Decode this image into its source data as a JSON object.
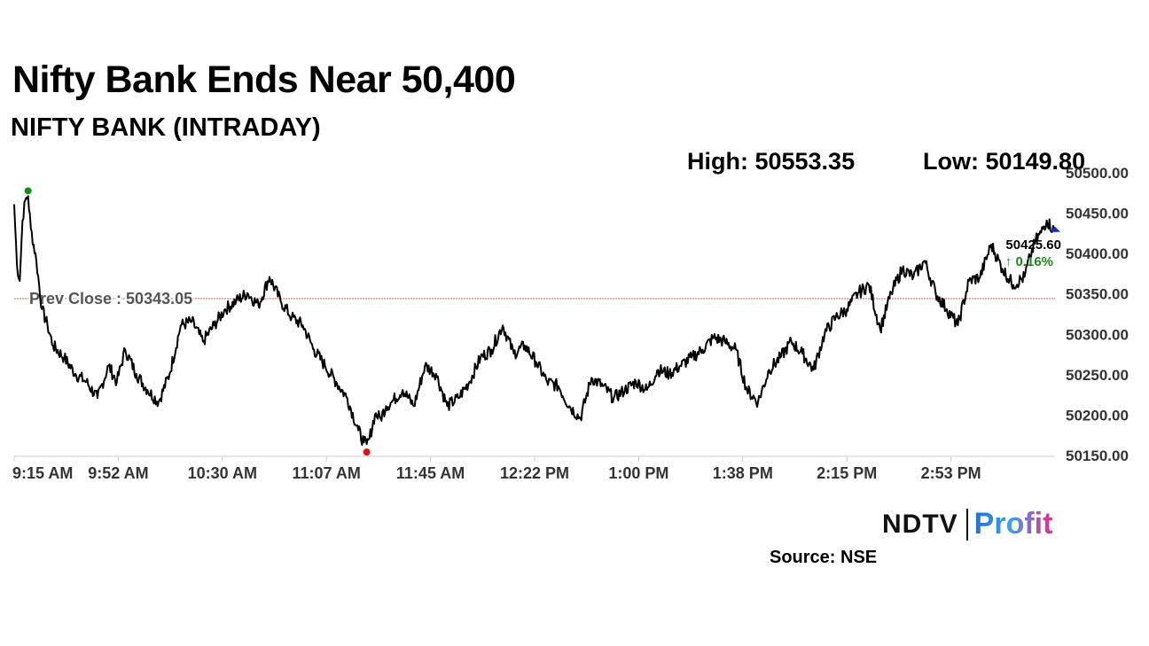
{
  "headline": "Nifty Bank Ends Near 50,400",
  "subheadline": "NIFTY BANK (INTRADAY)",
  "high_label": "High: 50553.35",
  "low_label": "Low: 50149.80",
  "source": "Source: NSE",
  "brand": {
    "ndtv": "NDTV",
    "profit": "Profit"
  },
  "colors": {
    "line": "#000000",
    "high_marker": "#1a8a1a",
    "low_marker": "#e01010",
    "change_up": "#1a8a1a",
    "prev_close_line": "#c86464",
    "end_marker": "#1a2fc0"
  },
  "chart_data": {
    "type": "line",
    "title": "NIFTY BANK (INTRADAY)",
    "ylim": [
      50150,
      50500
    ],
    "yticks": [
      50150,
      50200,
      50250,
      50300,
      50350,
      50400,
      50450,
      50500
    ],
    "ytick_labels": [
      "50150.00",
      "50200.00",
      "50250.00",
      "50300.00",
      "50350.00",
      "50400.00",
      "50450.00",
      "50500.00"
    ],
    "xticks": [
      "9:15 AM",
      "9:52 AM",
      "10:30 AM",
      "11:07 AM",
      "11:45 AM",
      "12:22 PM",
      "1:00 PM",
      "1:38 PM",
      "2:15 PM",
      "2:53 PM"
    ],
    "xrange_minutes": [
      0,
      375
    ],
    "prev_close": 50343.05,
    "prev_close_label": "Prev Close : 50343.05",
    "high": 50553.35,
    "low": 50149.8,
    "last_value_label": "50425.60",
    "change_label": "↑ 0.16%",
    "series": [
      {
        "x": [
          0,
          1,
          2,
          3,
          4,
          5,
          6,
          8,
          10,
          12,
          14,
          18,
          22,
          26,
          30,
          34,
          37,
          40,
          44,
          48,
          52,
          56,
          60,
          64,
          68,
          72,
          76,
          80,
          84,
          88,
          92,
          96,
          100,
          104,
          108,
          112,
          116,
          120,
          124,
          126,
          127,
          128,
          130,
          132,
          134,
          136,
          140,
          144,
          148,
          152,
          156,
          160,
          164,
          168,
          172,
          176,
          180,
          184,
          188,
          192,
          196,
          200,
          204,
          208,
          212,
          216,
          220,
          224,
          228,
          232,
          236,
          240,
          244,
          248,
          252,
          256,
          260,
          264,
          268,
          272,
          276,
          280,
          284,
          288,
          292,
          296,
          300,
          304,
          308,
          312,
          316,
          320,
          324,
          328,
          332,
          336,
          340,
          344,
          348,
          352,
          356,
          360,
          364,
          366,
          368,
          370,
          372,
          375
        ],
        "y": [
          50460,
          50385,
          50365,
          50440,
          50465,
          50470,
          50430,
          50390,
          50330,
          50310,
          50285,
          50270,
          50250,
          50240,
          50220,
          50260,
          50240,
          50280,
          50250,
          50230,
          50215,
          50250,
          50310,
          50315,
          50290,
          50310,
          50330,
          50340,
          50350,
          50335,
          50370,
          50340,
          50320,
          50310,
          50280,
          50260,
          50240,
          50220,
          50180,
          50165,
          50163,
          50170,
          50200,
          50195,
          50210,
          50215,
          50230,
          50210,
          50260,
          50250,
          50210,
          50220,
          50240,
          50270,
          50280,
          50310,
          50275,
          50285,
          50265,
          50240,
          50235,
          50210,
          50195,
          50245,
          50235,
          50220,
          50230,
          50240,
          50230,
          50255,
          50250,
          50260,
          50270,
          50280,
          50295,
          50290,
          50280,
          50230,
          50215,
          50255,
          50270,
          50290,
          50275,
          50255,
          50300,
          50320,
          50330,
          50350,
          50360,
          50305,
          50350,
          50380,
          50370,
          50390,
          50350,
          50330,
          50310,
          50365,
          50370,
          50410,
          50380,
          50360,
          50370,
          50395,
          50415,
          50425,
          50440,
          50425.6
        ]
      }
    ]
  }
}
